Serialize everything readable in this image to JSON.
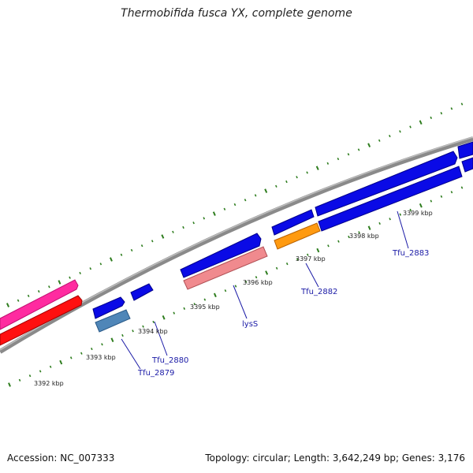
{
  "title": "Thermobifida fusca YX, complete genome",
  "accession": "Accession: NC_007333",
  "summary": "Topology: circular; Length: 3,642,249 bp; Genes: 3,176",
  "colors": {
    "backbone": "#8a8a8a",
    "tick_green": "#2e7d1e",
    "blue_gene": "#0a0ae6",
    "pink_gene": "#ff2ba0",
    "red_gene": "#ff1010",
    "steel_gene": "#4f86b8",
    "salmon_gene": "#f08a8e",
    "orange_gene": "#ff9a10",
    "label_line": "#1a1aa6"
  },
  "scale_labels": [
    "3392 kbp",
    "3393 kbp",
    "3394 kbp",
    "3395 kbp",
    "3396 kbp",
    "3397 kbp",
    "3398 kbp",
    "3399 kbp"
  ],
  "gene_labels": [
    "Tfu_2879",
    "Tfu_2880",
    "lysS",
    "Tfu_2882",
    "Tfu_2883"
  ]
}
